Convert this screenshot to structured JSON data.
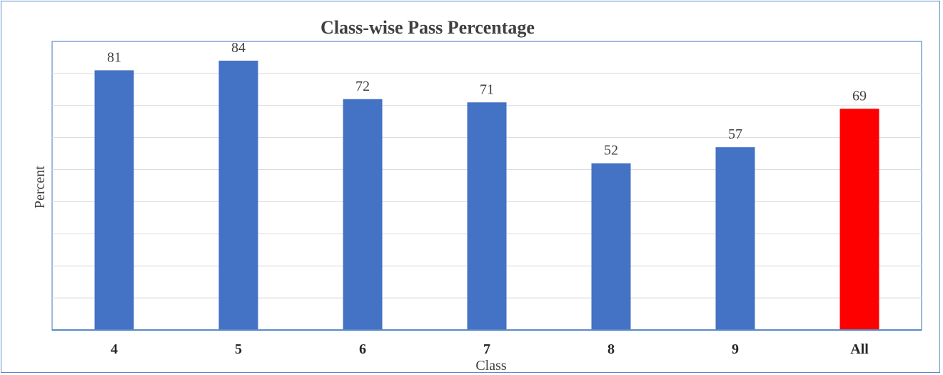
{
  "chart_data": {
    "type": "bar",
    "title": "Class-wise Pass Percentage",
    "xlabel": "Class",
    "ylabel": "Percent",
    "categories": [
      "4",
      "5",
      "6",
      "7",
      "8",
      "9",
      "All"
    ],
    "values": [
      81,
      84,
      72,
      71,
      52,
      57,
      69
    ],
    "bar_colors": [
      "#4472c4",
      "#4472c4",
      "#4472c4",
      "#4472c4",
      "#4472c4",
      "#4472c4",
      "#ff0000"
    ],
    "ylim": [
      0,
      90
    ],
    "y_gridlines": [
      10,
      20,
      30,
      40,
      50,
      60,
      70,
      80,
      90
    ],
    "grid": true,
    "legend": "none",
    "colors": {
      "bar": "#4472c4",
      "highlight_bar": "#ff0000",
      "frame": "#5b8bc6",
      "gridline": "#d9d9d9"
    }
  }
}
